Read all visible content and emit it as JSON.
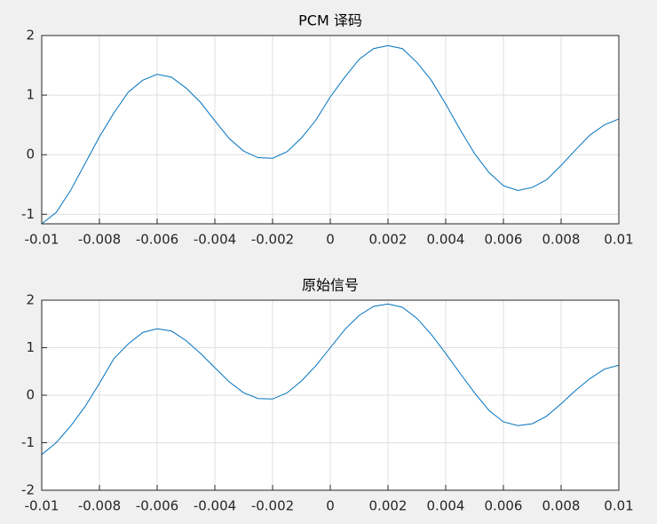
{
  "chart_data": [
    {
      "type": "line",
      "title": "PCM 译码",
      "x": [
        -0.01,
        -0.0095,
        -0.009,
        -0.0085,
        -0.008,
        -0.0075,
        -0.007,
        -0.0065,
        -0.006,
        -0.0055,
        -0.005,
        -0.0045,
        -0.004,
        -0.0035,
        -0.003,
        -0.0025,
        -0.002,
        -0.0015,
        -0.001,
        -0.0005,
        0,
        0.0005,
        0.001,
        0.0015,
        0.002,
        0.0025,
        0.003,
        0.0035,
        0.004,
        0.0045,
        0.005,
        0.0055,
        0.006,
        0.0065,
        0.007,
        0.0075,
        0.008,
        0.0085,
        0.009,
        0.0095,
        0.01
      ],
      "values": [
        -1.16,
        -0.97,
        -0.6,
        -0.15,
        0.3,
        0.7,
        1.05,
        1.25,
        1.35,
        1.3,
        1.12,
        0.88,
        0.57,
        0.27,
        0.06,
        -0.05,
        -0.06,
        0.05,
        0.28,
        0.58,
        0.97,
        1.3,
        1.6,
        1.78,
        1.83,
        1.78,
        1.55,
        1.25,
        0.85,
        0.42,
        0.02,
        -0.3,
        -0.52,
        -0.6,
        -0.55,
        -0.42,
        -0.18,
        0.08,
        0.33,
        0.5,
        0.6
      ],
      "color": "#0072bd",
      "xlim": [
        -0.01,
        0.01
      ],
      "xticks": [
        -0.01,
        -0.008,
        -0.006,
        -0.004,
        -0.002,
        0,
        0.002,
        0.004,
        0.006,
        0.008,
        0.01
      ],
      "ylim": [
        -1.16,
        2
      ],
      "yticks": [
        -1,
        0,
        1,
        2
      ],
      "grid": true
    },
    {
      "type": "line",
      "title": "原始信号",
      "x": [
        -0.01,
        -0.0095,
        -0.009,
        -0.0085,
        -0.008,
        -0.0075,
        -0.007,
        -0.0065,
        -0.006,
        -0.0055,
        -0.005,
        -0.0045,
        -0.004,
        -0.0035,
        -0.003,
        -0.0025,
        -0.002,
        -0.0015,
        -0.001,
        -0.0005,
        0,
        0.0005,
        0.001,
        0.0015,
        0.002,
        0.0025,
        0.003,
        0.0035,
        0.004,
        0.0045,
        0.005,
        0.0055,
        0.006,
        0.0065,
        0.007,
        0.0075,
        0.008,
        0.0085,
        0.009,
        0.0095,
        0.01
      ],
      "values": [
        -1.25,
        -1.0,
        -0.65,
        -0.24,
        0.25,
        0.77,
        1.08,
        1.32,
        1.4,
        1.35,
        1.15,
        0.88,
        0.58,
        0.28,
        0.05,
        -0.07,
        -0.08,
        0.05,
        0.3,
        0.62,
        1.0,
        1.38,
        1.68,
        1.87,
        1.92,
        1.85,
        1.62,
        1.28,
        0.88,
        0.46,
        0.05,
        -0.32,
        -0.56,
        -0.64,
        -0.6,
        -0.44,
        -0.18,
        0.1,
        0.35,
        0.55,
        0.63
      ],
      "color": "#0072bd",
      "xlim": [
        -0.01,
        0.01
      ],
      "xticks": [
        -0.01,
        -0.008,
        -0.006,
        -0.004,
        -0.002,
        0,
        0.002,
        0.004,
        0.006,
        0.008,
        0.01
      ],
      "ylim": [
        -2,
        2
      ],
      "yticks": [
        -2,
        -1,
        0,
        1,
        2
      ],
      "grid": true
    }
  ]
}
